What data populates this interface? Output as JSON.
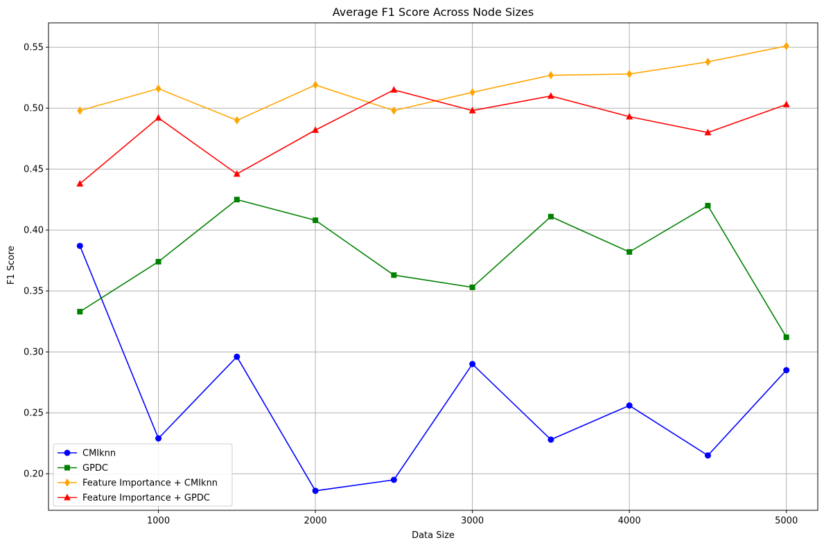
{
  "chart_data": {
    "type": "line",
    "title": "Average F1 Score Across Node Sizes",
    "xlabel": "Data Size",
    "ylabel": "F1 Score",
    "x": [
      500,
      1000,
      1500,
      2000,
      2500,
      3000,
      3500,
      4000,
      4500,
      5000
    ],
    "xlim": [
      300,
      5200
    ],
    "ylim": [
      0.17,
      0.57
    ],
    "xticks": [
      1000,
      2000,
      3000,
      4000,
      5000
    ],
    "yticks": [
      0.2,
      0.25,
      0.3,
      0.35,
      0.4,
      0.45,
      0.5,
      0.55
    ],
    "xtick_labels": [
      "1000",
      "2000",
      "3000",
      "4000",
      "5000"
    ],
    "ytick_labels": [
      "0.20",
      "0.25",
      "0.30",
      "0.35",
      "0.40",
      "0.45",
      "0.50",
      "0.55"
    ],
    "grid": true,
    "legend_position": "lower-left",
    "series": [
      {
        "name": "CMIknn",
        "color": "#0000ff",
        "marker": "circle",
        "values": [
          0.387,
          0.229,
          0.296,
          0.186,
          0.195,
          0.29,
          0.228,
          0.256,
          0.215,
          0.285
        ]
      },
      {
        "name": "GPDC",
        "color": "#008000",
        "marker": "square",
        "values": [
          0.333,
          0.374,
          0.425,
          0.408,
          0.363,
          0.353,
          0.411,
          0.382,
          0.42,
          0.312
        ]
      },
      {
        "name": "Feature Importance + CMIknn",
        "color": "#ffa500",
        "marker": "diamond",
        "values": [
          0.498,
          0.516,
          0.49,
          0.519,
          0.498,
          0.513,
          0.527,
          0.528,
          0.538,
          0.551
        ]
      },
      {
        "name": "Feature Importance + GPDC",
        "color": "#ff0000",
        "marker": "triangle",
        "values": [
          0.438,
          0.492,
          0.446,
          0.482,
          0.515,
          0.498,
          0.51,
          0.493,
          0.48,
          0.503
        ]
      }
    ]
  }
}
